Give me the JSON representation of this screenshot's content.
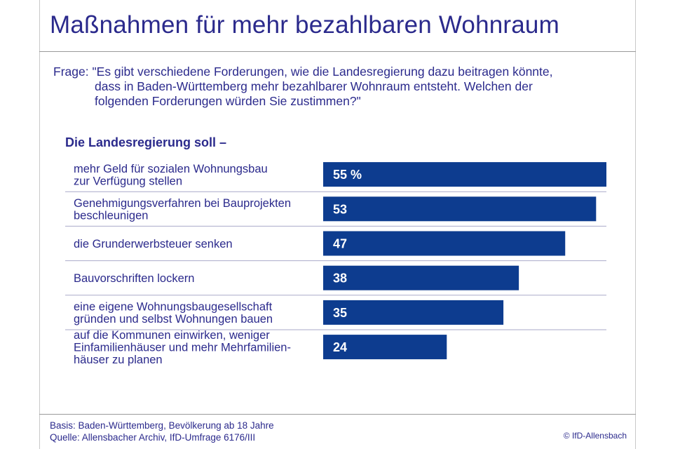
{
  "title": "Maßnahmen für mehr bezahlbaren Wohnraum",
  "question": {
    "lines": [
      "Frage: \"Es gibt verschiedene Forderungen, wie die Landesregierung dazu beitragen könnte,",
      "dass in Baden-Württemberg mehr bezahlbarer Wohnraum entsteht. Welchen der",
      "folgenden Forderungen würden Sie zustimmen?\""
    ]
  },
  "chart_heading": "Die Landesregierung soll –",
  "chart_data": {
    "type": "bar",
    "orientation": "horizontal",
    "title": "",
    "xlabel": "",
    "ylabel": "",
    "unit": "%",
    "xlim": [
      0,
      55
    ],
    "grid": false,
    "categories": [
      [
        "mehr Geld für sozialen Wohnungsbau",
        "zur Verfügung stellen"
      ],
      [
        "Genehmigungsverfahren bei Bauprojekten",
        "beschleunigen"
      ],
      [
        "die Grunderwerbsteuer senken"
      ],
      [
        "Bauvorschriften lockern"
      ],
      [
        "eine eigene Wohnungsbaugesellschaft",
        "gründen und selbst Wohnungen bauen"
      ],
      [
        "auf die Kommunen einwirken, weniger",
        "Einfamilienhäuser und mehr Mehrfamilien-",
        "häuser zu planen"
      ]
    ],
    "values": [
      55,
      53,
      47,
      38,
      35,
      24
    ],
    "value_labels": [
      "55 %",
      "53",
      "47",
      "38",
      "35",
      "24"
    ],
    "bar_color": "#0d3c8f"
  },
  "footer": {
    "basis": "Basis: Baden-Württemberg, Bevölkerung ab 18 Jahre",
    "quelle": "Quelle: Allensbacher Archiv, IfD-Umfrage 6176/III"
  },
  "copyright": "© IfD-Allensbach"
}
